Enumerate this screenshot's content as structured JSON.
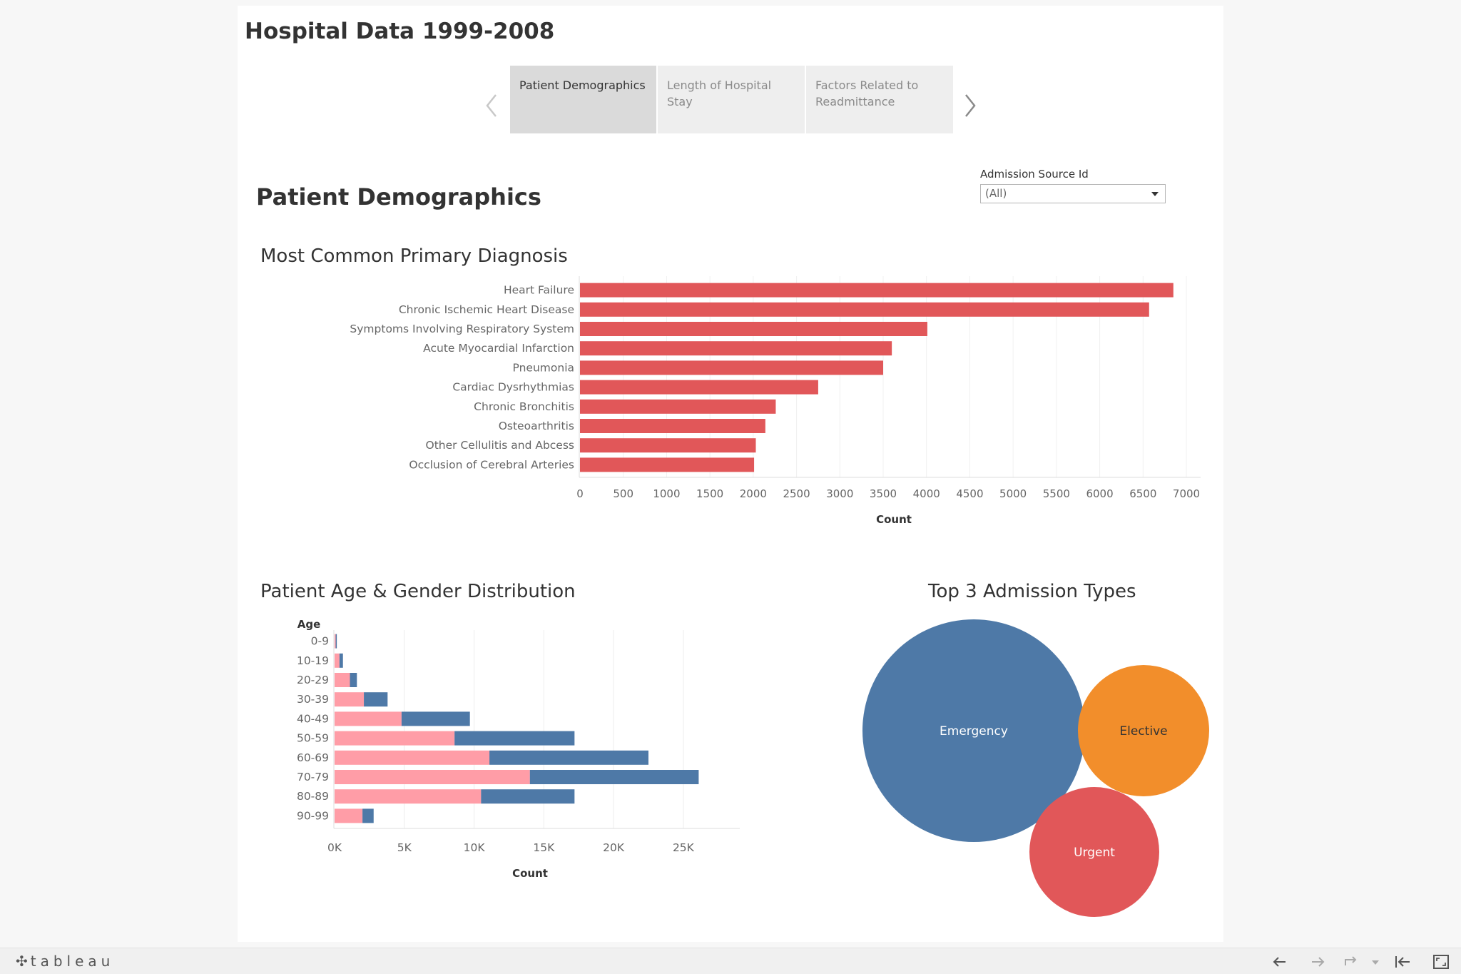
{
  "dashboard": {
    "title": "Hospital Data 1999-2008"
  },
  "story": {
    "points": [
      {
        "label": "Patient Demographics",
        "active": true
      },
      {
        "label": "Length of Hospital Stay",
        "active": false
      },
      {
        "label": "Factors Related to Readmittance",
        "active": false
      }
    ]
  },
  "section": {
    "title": "Patient Demographics"
  },
  "filter": {
    "label": "Admission Source Id",
    "value": "(All)"
  },
  "charts": {
    "diagnosis_title": "Most Common Primary Diagnosis",
    "age_gender_title": "Patient Age & Gender Distribution",
    "admission_title": "Top 3 Admission Types"
  },
  "chart_data": [
    {
      "type": "bar",
      "orientation": "horizontal",
      "title": "Most Common Primary Diagnosis",
      "categories": [
        "Heart Failure",
        "Chronic Ischemic Heart Disease",
        "Symptoms Involving Respiratory System",
        "Acute Myocardial Infarction",
        "Pneumonia",
        "Cardiac Dysrhythmias",
        "Chronic Bronchitis",
        "Osteoarthritis",
        "Other Cellulitis and Abcess",
        "Occlusion of Cerebral Arteries"
      ],
      "values": [
        6850,
        6570,
        4010,
        3600,
        3500,
        2750,
        2260,
        2140,
        2030,
        2010
      ],
      "xlabel": "Count",
      "ylabel": "",
      "xlim": [
        0,
        7000
      ],
      "ticks": [
        "0",
        "500",
        "1000",
        "1500",
        "2000",
        "2500",
        "3000",
        "3500",
        "4000",
        "4500",
        "5000",
        "5500",
        "6000",
        "6500",
        "7000"
      ],
      "color": "#e15759",
      "grid": true
    },
    {
      "type": "bar",
      "orientation": "horizontal",
      "stacked": true,
      "title": "Patient Age & Gender Distribution",
      "ylabel": "Age",
      "xlabel": "Count",
      "categories": [
        "0-9",
        "10-19",
        "20-29",
        "30-39",
        "40-49",
        "50-59",
        "60-69",
        "70-79",
        "80-89",
        "90-99"
      ],
      "series": [
        {
          "values": [
            80,
            350,
            1100,
            2100,
            4800,
            8600,
            11100,
            14000,
            10500,
            2000
          ],
          "color": "#ff9da7"
        },
        {
          "values": [
            80,
            250,
            500,
            1700,
            4900,
            8600,
            11400,
            12100,
            6700,
            800
          ],
          "color": "#4e79a7"
        }
      ],
      "xlim": [
        0,
        27000
      ],
      "ticks": [
        {
          "value": 0,
          "label": "0K"
        },
        {
          "value": 5000,
          "label": "5K"
        },
        {
          "value": 10000,
          "label": "10K"
        },
        {
          "value": 15000,
          "label": "15K"
        },
        {
          "value": 20000,
          "label": "20K"
        },
        {
          "value": 25000,
          "label": "25K"
        }
      ],
      "grid": true
    },
    {
      "type": "bubble",
      "title": "Top 3 Admission Types",
      "items": [
        {
          "label": "Emergency",
          "color": "#4e79a7",
          "label_color": "#ffffff"
        },
        {
          "label": "Elective",
          "color": "#f28e2b",
          "label_color": "#333333"
        },
        {
          "label": "Urgent",
          "color": "#e15759",
          "label_color": "#ffffff"
        }
      ]
    }
  ],
  "footer": {
    "logo": "tableau",
    "logo_icon": "tableau-plus-icon",
    "buttons": [
      "undo-icon",
      "redo-icon",
      "revert-icon",
      "dropdown-icon",
      "reset-icon",
      "fullscreen-icon"
    ]
  }
}
